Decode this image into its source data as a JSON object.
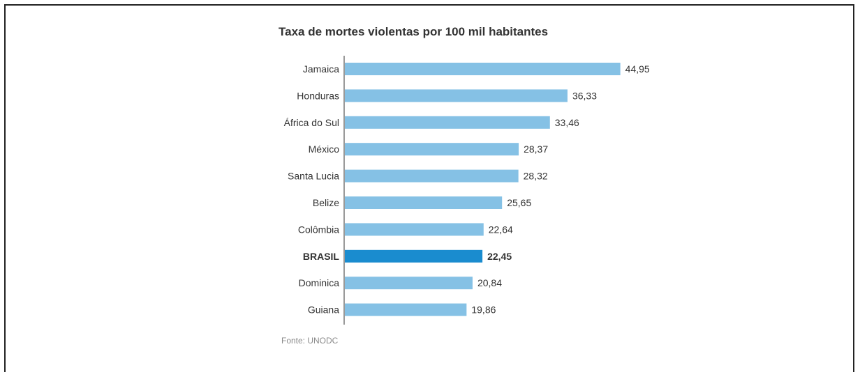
{
  "chart_data": {
    "type": "bar",
    "orientation": "horizontal",
    "title": "Taxa de mortes violentas por 100 mil habitantes",
    "categories": [
      "Jamaica",
      "Honduras",
      "África do Sul",
      "México",
      "Santa Lucia",
      "Belize",
      "Colômbia",
      "BRASIL",
      "Dominica",
      "Guiana"
    ],
    "values": [
      44.95,
      36.33,
      33.46,
      28.37,
      28.32,
      25.65,
      22.64,
      22.45,
      20.84,
      19.86
    ],
    "value_labels": [
      "44,95",
      "36,33",
      "33,46",
      "28,37",
      "28,32",
      "25,65",
      "22,64",
      "22,45",
      "20,84",
      "19,86"
    ],
    "highlight": "BRASIL",
    "xlim": [
      0,
      45
    ],
    "grid": false,
    "colors": {
      "bar": "#85c1e5",
      "highlight": "#1a8ccf",
      "axis": "#333333"
    },
    "source": "Fonte: UNODC"
  }
}
